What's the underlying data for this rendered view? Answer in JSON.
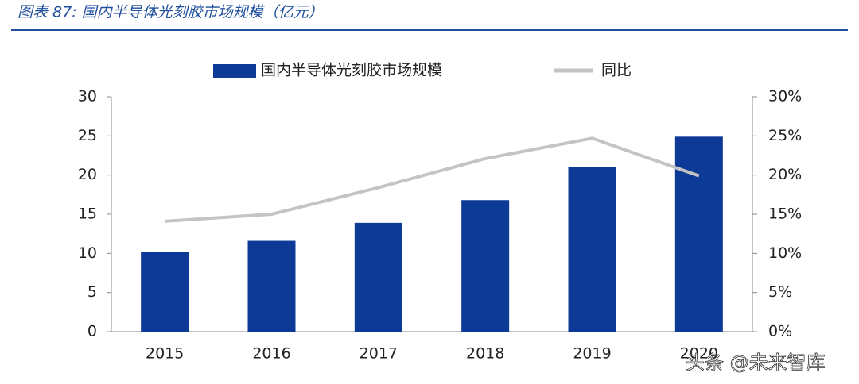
{
  "chart_data": {
    "type": "bar-line",
    "title": "图表 87: 国内半导体光刻胶市场规模（亿元）",
    "categories": [
      "2015",
      "2016",
      "2017",
      "2018",
      "2019",
      "2020"
    ],
    "series": [
      {
        "name": "国内半导体光刻胶市场规模",
        "color": "#0d3a96",
        "type": "bar",
        "values": [
          10.2,
          11.6,
          13.9,
          16.8,
          21.0,
          24.9
        ]
      },
      {
        "name": "同比",
        "color": "#c4c4c4",
        "type": "line",
        "axis": "y2",
        "values": [
          14.1,
          15.0,
          18.4,
          22.1,
          24.7,
          19.9
        ]
      }
    ],
    "ylim": [
      0,
      30
    ],
    "yticks": [
      0,
      5,
      10,
      15,
      20,
      25,
      30
    ],
    "y2lim": [
      0,
      30
    ],
    "y2ticks": [
      {
        "value": 0,
        "label": "0%"
      },
      {
        "value": 5,
        "label": "5%"
      },
      {
        "value": 10,
        "label": "10%"
      },
      {
        "value": 15,
        "label": "15%"
      },
      {
        "value": 20,
        "label": "20%"
      },
      {
        "value": 25,
        "label": "25%"
      },
      {
        "value": 30,
        "label": "30%"
      }
    ],
    "legend": "top",
    "watermark": "头条 @未来智库"
  }
}
